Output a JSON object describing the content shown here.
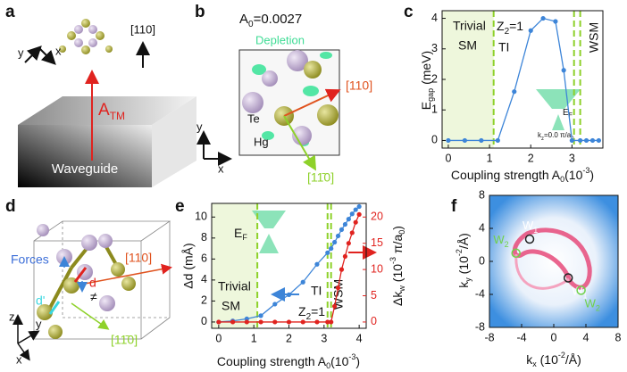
{
  "panel_labels": [
    "a",
    "b",
    "c",
    "d",
    "e",
    "f"
  ],
  "diagrams": {
    "a": {
      "y": "y",
      "x": "x",
      "direction": "[110]",
      "field": [
        "A",
        "TM"
      ],
      "device": "Waveguide"
    },
    "b": {
      "a0": [
        "A",
        "0",
        "=0.0027"
      ],
      "depletion": "Depletion",
      "dir1": "[110]",
      "te": "Te",
      "hg": "Hg",
      "dir2": "[11̄0]",
      "y": "y",
      "x": "x"
    },
    "d": {
      "forces": "Forces",
      "d": "d",
      "dir1": "[110]",
      "dprime": "d'",
      "neq": "≠",
      "z": "z",
      "y": "y",
      "x": "x",
      "dir2": "[11̄0]"
    }
  },
  "chart_data": [
    {
      "type": "line",
      "x": [
        0,
        0.4,
        0.8,
        1.2,
        1.6,
        2.0,
        2.3,
        2.6,
        2.8,
        3.0,
        3.2,
        3.35,
        3.5,
        3.65
      ],
      "series": [
        {
          "color": "#3d85d8",
          "values": [
            0,
            0,
            0,
            0,
            1.6,
            3.6,
            4.0,
            3.9,
            2.3,
            0,
            0,
            0,
            0,
            0
          ]
        }
      ],
      "xlim": [
        -0.15,
        3.75
      ],
      "ylim": [
        -0.25,
        4.25
      ],
      "xticks": [
        0,
        1,
        2,
        3
      ],
      "yticks": [
        0,
        1,
        2,
        3,
        4
      ],
      "phase_boundaries": [
        1.1,
        3.05,
        3.2
      ],
      "x_label": [
        "Coupling strength A",
        "0",
        "(10",
        "-3",
        ")"
      ],
      "y_label": [
        "E",
        "gap",
        " (meV)"
      ],
      "regions": {
        "trivial": [
          "Trivial",
          "SM"
        ],
        "ti": [
          "Z",
          "2",
          "=1",
          "TI"
        ],
        "wsm": "WSM"
      },
      "inset": {
        "ef": [
          "E",
          "F"
        ],
        "kz": [
          "k",
          "z",
          "=0.0 π/a",
          "0"
        ]
      }
    },
    {
      "type": "line",
      "x": [
        0,
        0.4,
        0.8,
        1.2,
        1.6,
        2.0,
        2.4,
        2.8,
        3.1,
        3.2,
        3.3,
        3.4,
        3.5,
        3.6,
        3.7,
        3.8,
        3.9,
        4.0
      ],
      "series": [
        {
          "color": "#3d85d8",
          "values": [
            0,
            0.1,
            0.3,
            0.6,
            1.7,
            2.6,
            3.8,
            5.5,
            6.6,
            7.0,
            7.6,
            8.2,
            8.8,
            9.3,
            9.8,
            10.3,
            10.7,
            11.0
          ]
        },
        {
          "color": "#e0231f",
          "axis": "y2",
          "values": [
            0,
            0,
            0,
            0,
            0,
            0,
            0,
            0,
            0,
            0,
            3,
            6.5,
            10,
            12.5,
            15,
            17,
            19,
            20.5
          ]
        }
      ],
      "xlim": [
        -0.2,
        4.2
      ],
      "ylim": [
        -0.6,
        11.3
      ],
      "y2lim": [
        -1.2,
        22.6
      ],
      "xticks": [
        0,
        1,
        2,
        3,
        4
      ],
      "yticks": [
        0,
        2,
        4,
        6,
        8,
        10
      ],
      "y2ticks": [
        0,
        5,
        10,
        15,
        20
      ],
      "phase_boundaries": [
        1.1,
        3.1,
        3.2
      ],
      "x_label": [
        "Coupling strength A",
        "0",
        "(10",
        "-3",
        ")"
      ],
      "y_label": [
        "Δd (mÅ)"
      ],
      "y2_label": [
        "Δk",
        "w",
        " (10",
        "-3",
        " π/a",
        "0",
        ")"
      ],
      "regions": {
        "trivial": [
          "Trivial",
          "SM"
        ],
        "ti": "TI",
        "z2": [
          "Z",
          "2",
          "=1"
        ],
        "wsm": "WSM"
      },
      "inset": {
        "ef": [
          "E",
          "F"
        ]
      }
    },
    {
      "type": "heatmap",
      "xlim": [
        -8,
        8
      ],
      "ylim": [
        -8,
        8
      ],
      "xticks": [
        -8,
        -4,
        0,
        4,
        8
      ],
      "yticks": [
        -8,
        -4,
        0,
        4,
        8
      ],
      "x_label": [
        "k",
        "x",
        " (10",
        "-2",
        "/Å)"
      ],
      "y_label": [
        "k",
        "y",
        " (10",
        "-2",
        "/Å)"
      ],
      "points": [
        {
          "label": [
            "W",
            "1"
          ],
          "x": -3,
          "y": 2.7,
          "color": "#222222"
        },
        {
          "label": [
            "W",
            "2"
          ],
          "x": -4.7,
          "y": 1,
          "color": "#6fd14a"
        },
        {
          "label": [
            "W",
            "1"
          ],
          "x": 1.8,
          "y": -2,
          "color": "#222222"
        },
        {
          "label": [
            "W",
            "2"
          ],
          "x": 3.4,
          "y": -3.5,
          "color": "#6fd14a"
        }
      ]
    }
  ]
}
